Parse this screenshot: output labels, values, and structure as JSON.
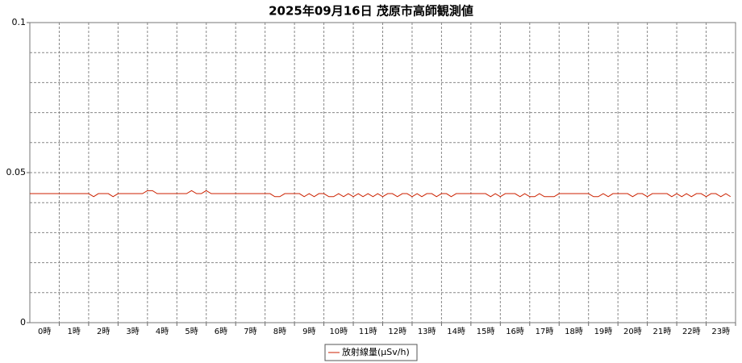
{
  "chart_data": {
    "type": "line",
    "title": "2025年09月16日 茂原市高師観測値",
    "categories": [
      "0時",
      "1時",
      "2時",
      "3時",
      "4時",
      "5時",
      "6時",
      "7時",
      "8時",
      "9時",
      "10時",
      "11時",
      "12時",
      "13時",
      "14時",
      "15時",
      "16時",
      "17時",
      "18時",
      "19時",
      "20時",
      "21時",
      "22時",
      "23時"
    ],
    "xlim": [
      0,
      24
    ],
    "ylim": [
      0,
      0.1
    ],
    "yticks": [
      0,
      0.05,
      0.1
    ],
    "minor_yticks": [
      0.01,
      0.02,
      0.03,
      0.04,
      0.06,
      0.07,
      0.08,
      0.09
    ],
    "grid": true,
    "legend": "bottom",
    "x": [
      0,
      0.17,
      0.33,
      0.5,
      0.67,
      0.83,
      1,
      1.17,
      1.33,
      1.5,
      1.67,
      1.83,
      2,
      2.17,
      2.33,
      2.5,
      2.67,
      2.83,
      3,
      3.17,
      3.33,
      3.5,
      3.67,
      3.83,
      4,
      4.17,
      4.33,
      4.5,
      4.67,
      4.83,
      5,
      5.17,
      5.33,
      5.5,
      5.67,
      5.83,
      6,
      6.17,
      6.33,
      6.5,
      6.67,
      6.83,
      7,
      7.17,
      7.33,
      7.5,
      7.67,
      7.83,
      8,
      8.17,
      8.33,
      8.5,
      8.67,
      8.83,
      9,
      9.17,
      9.33,
      9.5,
      9.67,
      9.83,
      10,
      10.17,
      10.33,
      10.5,
      10.67,
      10.83,
      11,
      11.17,
      11.33,
      11.5,
      11.67,
      11.83,
      12,
      12.17,
      12.33,
      12.5,
      12.67,
      12.83,
      13,
      13.17,
      13.33,
      13.5,
      13.67,
      13.83,
      14,
      14.17,
      14.33,
      14.5,
      14.67,
      14.83,
      15,
      15.17,
      15.33,
      15.5,
      15.67,
      15.83,
      16,
      16.17,
      16.33,
      16.5,
      16.67,
      16.83,
      17,
      17.17,
      17.33,
      17.5,
      17.67,
      17.83,
      18,
      18.17,
      18.33,
      18.5,
      18.67,
      18.83,
      19,
      19.17,
      19.33,
      19.5,
      19.67,
      19.83,
      20,
      20.17,
      20.33,
      20.5,
      20.67,
      20.83,
      21,
      21.17,
      21.33,
      21.5,
      21.67,
      21.83,
      22,
      22.17,
      22.33,
      22.5,
      22.67,
      22.83,
      23,
      23.17,
      23.33,
      23.5,
      23.67,
      23.83
    ],
    "series": [
      {
        "name": "放射線量(μSv/h)",
        "color": "#cc2200",
        "values": [
          0.043,
          0.043,
          0.043,
          0.043,
          0.043,
          0.043,
          0.043,
          0.043,
          0.043,
          0.043,
          0.043,
          0.043,
          0.043,
          0.042,
          0.043,
          0.043,
          0.043,
          0.042,
          0.043,
          0.043,
          0.043,
          0.043,
          0.043,
          0.043,
          0.044,
          0.044,
          0.043,
          0.043,
          0.043,
          0.043,
          0.043,
          0.043,
          0.043,
          0.044,
          0.043,
          0.043,
          0.044,
          0.043,
          0.043,
          0.043,
          0.043,
          0.043,
          0.043,
          0.043,
          0.043,
          0.043,
          0.043,
          0.043,
          0.043,
          0.043,
          0.042,
          0.042,
          0.043,
          0.043,
          0.043,
          0.043,
          0.042,
          0.043,
          0.042,
          0.043,
          0.043,
          0.042,
          0.042,
          0.043,
          0.042,
          0.043,
          0.042,
          0.043,
          0.042,
          0.043,
          0.042,
          0.043,
          0.042,
          0.043,
          0.043,
          0.042,
          0.043,
          0.043,
          0.042,
          0.043,
          0.042,
          0.043,
          0.043,
          0.042,
          0.043,
          0.043,
          0.042,
          0.043,
          0.043,
          0.043,
          0.043,
          0.043,
          0.043,
          0.043,
          0.042,
          0.043,
          0.042,
          0.043,
          0.043,
          0.043,
          0.042,
          0.043,
          0.042,
          0.042,
          0.043,
          0.042,
          0.042,
          0.042,
          0.043,
          0.043,
          0.043,
          0.043,
          0.043,
          0.043,
          0.043,
          0.042,
          0.042,
          0.043,
          0.042,
          0.043,
          0.043,
          0.043,
          0.043,
          0.042,
          0.043,
          0.043,
          0.042,
          0.043,
          0.043,
          0.043,
          0.043,
          0.042,
          0.043,
          0.042,
          0.043,
          0.042,
          0.043,
          0.043,
          0.042,
          0.043,
          0.043,
          0.042,
          0.043,
          0.042
        ]
      }
    ]
  }
}
